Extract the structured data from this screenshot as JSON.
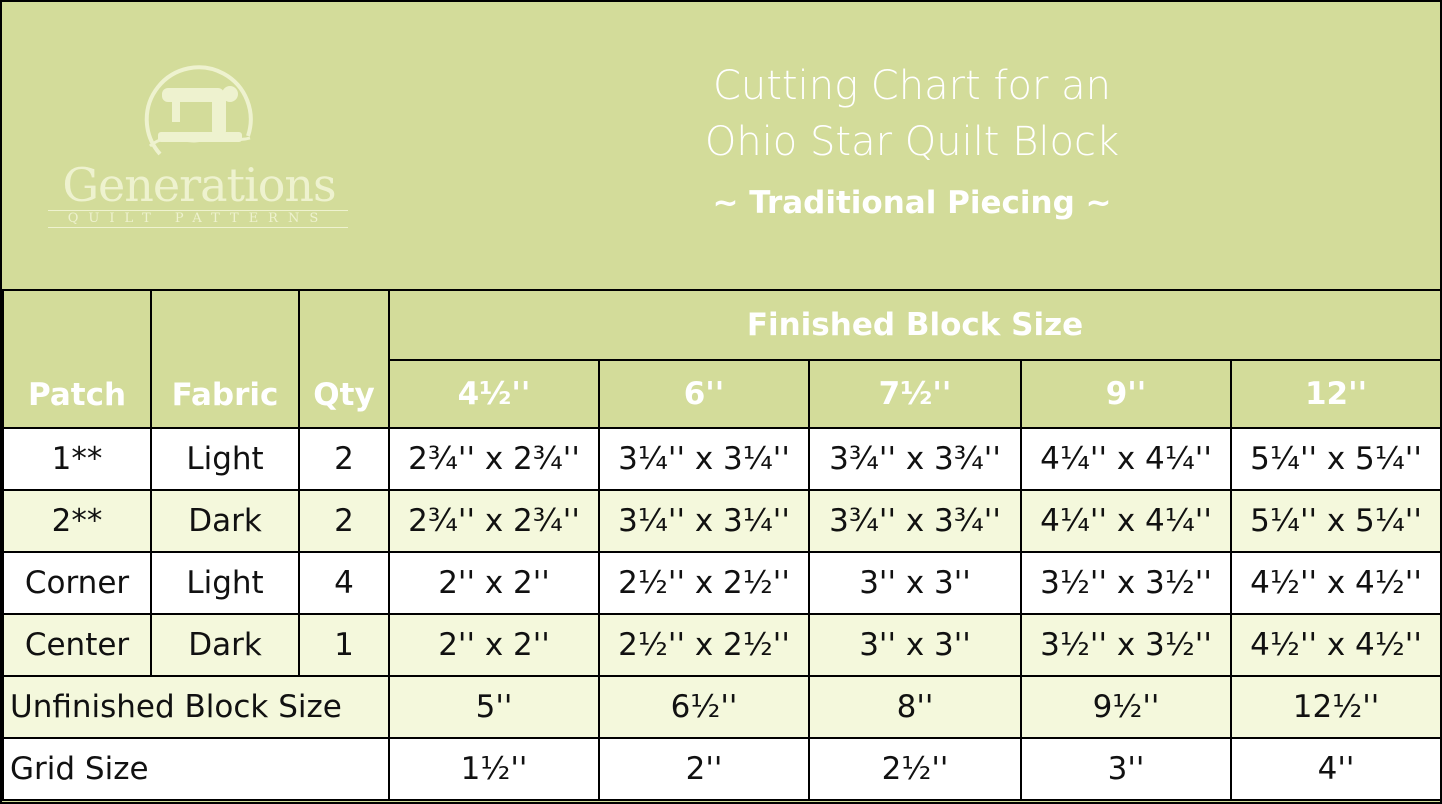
{
  "logo": {
    "word": "Generations",
    "sub": "QUILT PATTERNS"
  },
  "title": {
    "line1": "Cutting Chart for an",
    "line2": "Ohio Star Quilt Block",
    "subtitle": "~ Traditional Piecing ~"
  },
  "table": {
    "group_header": "Finished Block Size",
    "headers": {
      "patch": "Patch",
      "fabric": "Fabric",
      "qty": "Qty"
    },
    "sizes": [
      "4½''",
      "6''",
      "7½''",
      "9''",
      "12''"
    ],
    "rows": [
      {
        "patch": "1**",
        "fabric": "Light",
        "qty": "2",
        "cuts": [
          "2¾'' x 2¾''",
          "3¼'' x 3¼''",
          "3¾'' x 3¾''",
          "4¼'' x 4¼''",
          "5¼'' x 5¼''"
        ]
      },
      {
        "patch": "2**",
        "fabric": "Dark",
        "qty": "2",
        "cuts": [
          "2¾'' x 2¾''",
          "3¼'' x 3¼''",
          "3¾'' x 3¾''",
          "4¼'' x 4¼''",
          "5¼'' x 5¼''"
        ]
      },
      {
        "patch": "Corner",
        "fabric": "Light",
        "qty": "4",
        "cuts": [
          "2'' x 2''",
          "2½'' x 2½''",
          "3'' x 3''",
          "3½'' x 3½''",
          "4½'' x 4½''"
        ]
      },
      {
        "patch": "Center",
        "fabric": "Dark",
        "qty": "1",
        "cuts": [
          "2'' x 2''",
          "2½'' x 2½''",
          "3'' x 3''",
          "3½'' x 3½''",
          "4½'' x 4½''"
        ]
      }
    ],
    "unfinished": {
      "label": "Unfinished Block Size",
      "values": [
        "5''",
        "6½''",
        "8''",
        "9½''",
        "12½''"
      ]
    },
    "grid": {
      "label": "Grid Size",
      "values": [
        "1½''",
        "2''",
        "2½''",
        "3''",
        "4''"
      ]
    }
  },
  "colors": {
    "header_bg": "#d3dc9a",
    "row_light": "#f4f8dc",
    "row_white": "#ffffff"
  },
  "icons": {
    "logo": "sewing-machine-icon"
  }
}
